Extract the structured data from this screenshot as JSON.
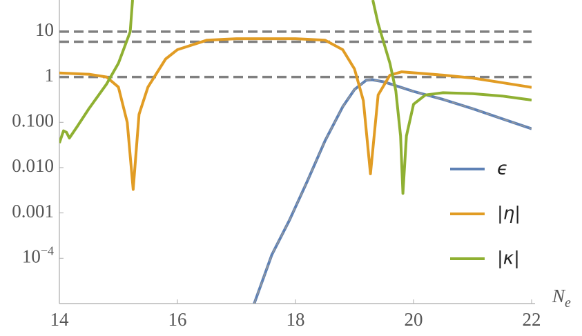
{
  "chart_data": {
    "type": "line",
    "log_y": true,
    "xlabel": "N",
    "xlabel_subscript": "e",
    "xlim": [
      14,
      22
    ],
    "xticks": [
      14,
      16,
      18,
      20,
      22
    ],
    "ylim": [
      1e-05,
      50
    ],
    "yticks": [
      {
        "value": 0.0001,
        "label": "10",
        "exponent": "−4"
      },
      0.001,
      {
        "value": 0.01,
        "label": "0.010"
      },
      {
        "value": 0.1,
        "label": "0.100"
      },
      1,
      10
    ],
    "hlines": [
      10,
      6,
      1
    ],
    "hline_color": "#808080",
    "legend": "right",
    "series": [
      {
        "name": "ϵ",
        "color": "#5e81b5",
        "dash_overlay": "#999999",
        "x": [
          17.3,
          17.6,
          17.9,
          18.2,
          18.5,
          18.8,
          19.0,
          19.2,
          19.3,
          19.5,
          20.0,
          20.5,
          21.0,
          21.5,
          22.0
        ],
        "values": [
          1e-05,
          0.00012,
          0.0007,
          0.005,
          0.039,
          0.22,
          0.53,
          0.85,
          0.87,
          0.78,
          0.48,
          0.32,
          0.2,
          0.12,
          0.072
        ]
      },
      {
        "name": "|η|",
        "color": "#e19c24",
        "x": [
          14.0,
          14.5,
          14.8,
          15.0,
          15.15,
          15.25,
          15.35,
          15.5,
          15.8,
          16.0,
          16.5,
          17.0,
          18.0,
          18.5,
          18.8,
          19.0,
          19.15,
          19.27,
          19.4,
          19.6,
          19.8,
          20.5,
          21.0,
          21.5,
          22.0
        ],
        "values": [
          1.23,
          1.15,
          1.0,
          0.6,
          0.1,
          0.0033,
          0.15,
          0.6,
          2.5,
          4,
          6.5,
          7,
          7,
          6.5,
          4,
          1.5,
          0.3,
          0.0073,
          0.4,
          1.1,
          1.3,
          1.1,
          0.95,
          0.75,
          0.59
        ]
      },
      {
        "name": "|κ|",
        "color": "#8fb032",
        "x": [
          14.0,
          14.07,
          14.12,
          14.17,
          14.3,
          14.5,
          14.8,
          15.0,
          15.2,
          15.24,
          15.3,
          19.31,
          19.4,
          19.6,
          19.7,
          19.78,
          19.82,
          19.88,
          20.0,
          20.2,
          20.5,
          21.0,
          21.5,
          22.0
        ],
        "values": [
          0.035,
          0.065,
          0.06,
          0.045,
          0.08,
          0.2,
          0.7,
          2,
          10,
          50,
          null,
          50,
          15,
          2,
          0.5,
          0.05,
          0.0027,
          0.05,
          0.25,
          0.4,
          0.45,
          0.43,
          0.38,
          0.31
        ]
      }
    ]
  }
}
